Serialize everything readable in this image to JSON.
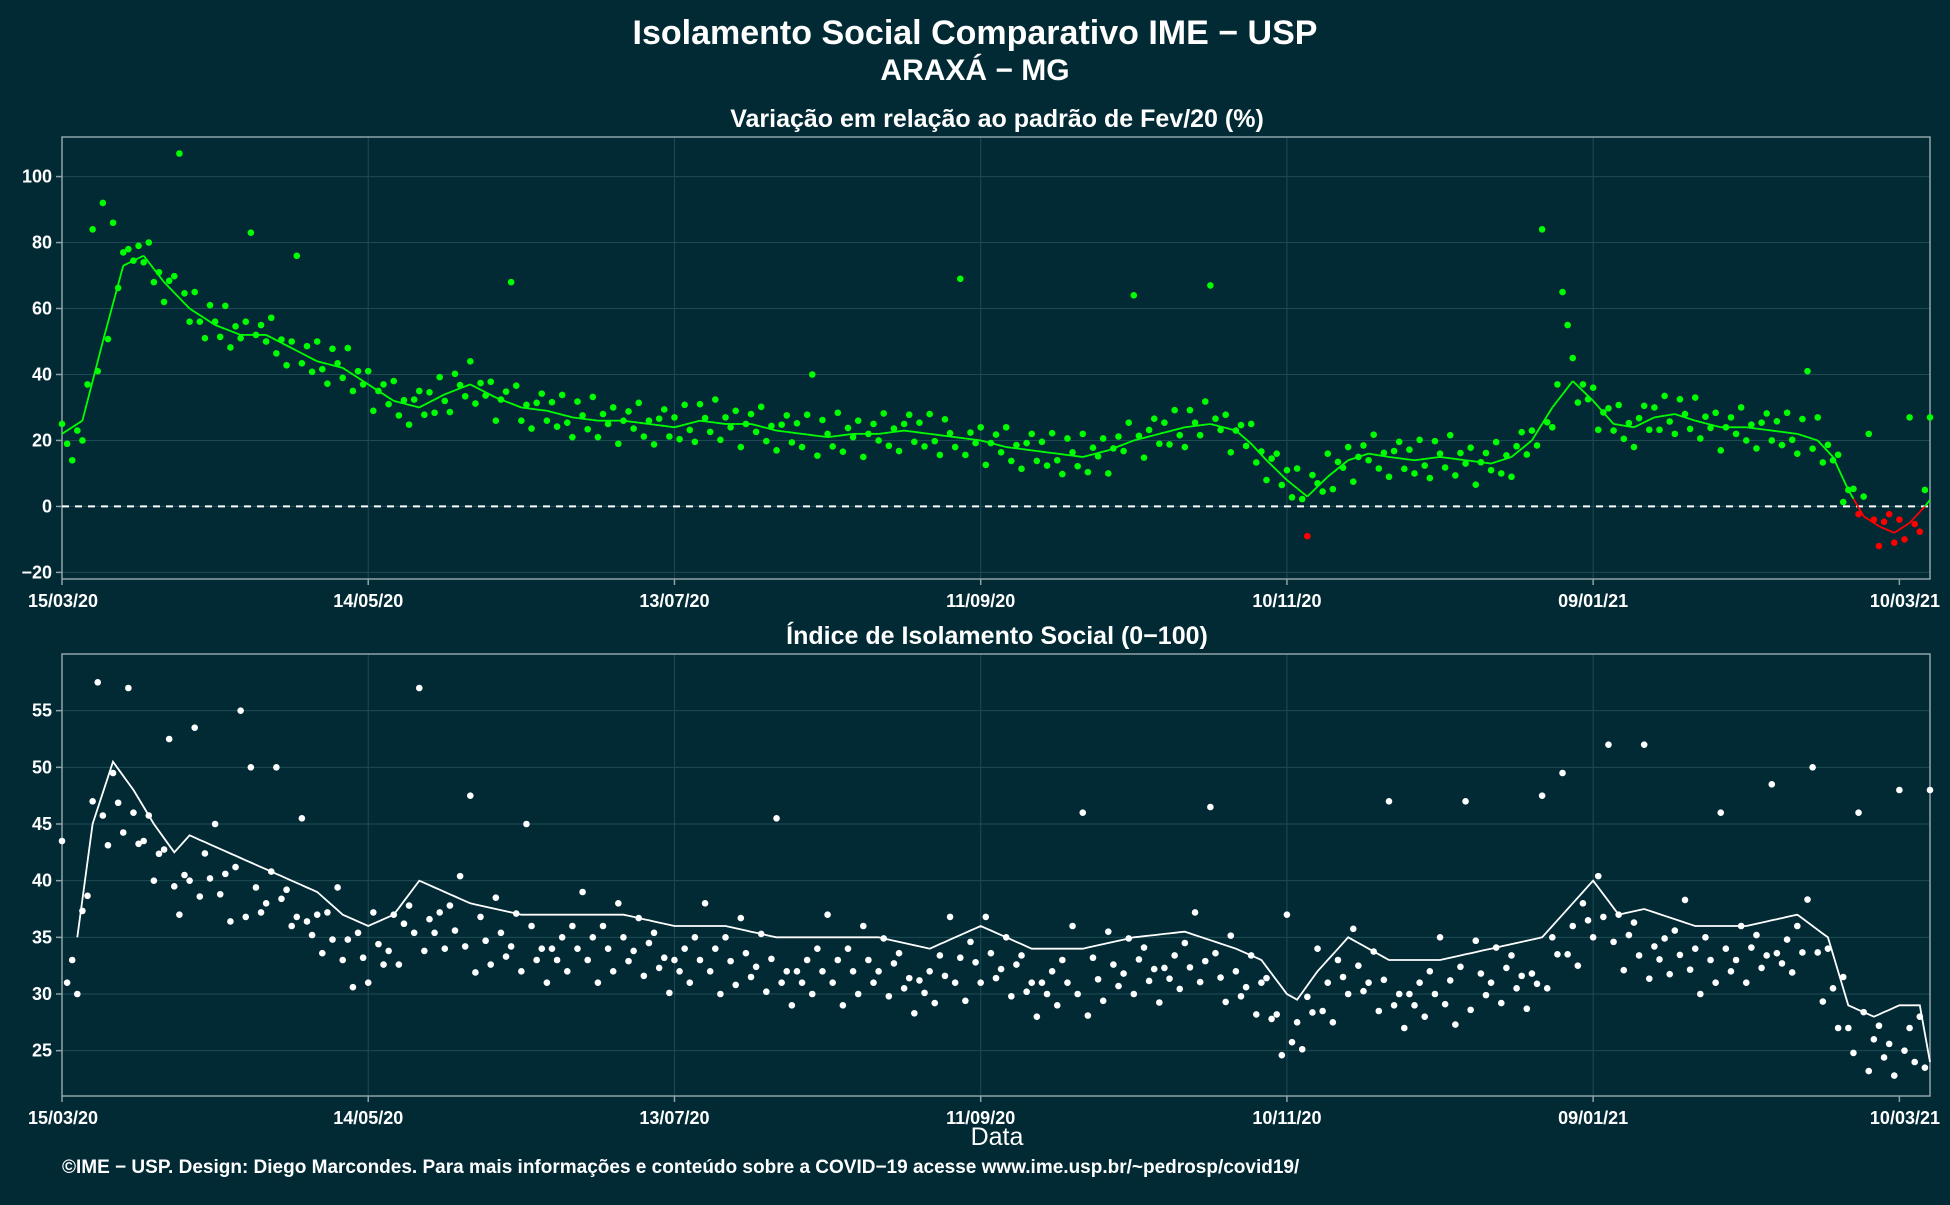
{
  "title": "Isolamento Social Comparativo IME − USP",
  "subtitle": "ARAXÁ − MG",
  "footer": "©IME − USP. Design: Diego Marcondes. Para mais informações e conteúdo sobre a COVID−19 acesse www.ime.usp.br/~pedrosp/covid19/",
  "colors": {
    "background": "#012a35",
    "positive": "#00ff00",
    "negative": "#ff0000",
    "index": "#ffffff",
    "axis": "#8fa3a6"
  },
  "chart_data": [
    {
      "type": "scatter",
      "title": "Variação em relação ao padrão de Fev/20 (%)",
      "xlabel": "",
      "ylabel": "",
      "x_ticks": [
        "15/03/20",
        "14/05/20",
        "13/07/20",
        "11/09/20",
        "10/11/20",
        "09/01/21",
        "10/03/21"
      ],
      "x_tick_days": [
        0,
        60,
        120,
        180,
        240,
        300,
        360
      ],
      "x_range_days": [
        0,
        366
      ],
      "y_ticks": [
        "−20",
        "0",
        "20",
        "40",
        "60",
        "80",
        "100"
      ],
      "ylim": [
        -22,
        112
      ],
      "reference_line": 0,
      "grid": true,
      "anchors": [
        [
          0,
          22
        ],
        [
          4,
          26
        ],
        [
          8,
          50
        ],
        [
          12,
          73
        ],
        [
          16,
          76
        ],
        [
          20,
          68
        ],
        [
          25,
          60
        ],
        [
          30,
          55
        ],
        [
          35,
          52
        ],
        [
          40,
          52
        ],
        [
          45,
          48
        ],
        [
          50,
          44
        ],
        [
          55,
          42
        ],
        [
          60,
          37
        ],
        [
          65,
          32
        ],
        [
          70,
          30
        ],
        [
          75,
          34
        ],
        [
          80,
          37
        ],
        [
          85,
          33
        ],
        [
          90,
          30
        ],
        [
          95,
          29
        ],
        [
          100,
          27
        ],
        [
          105,
          26
        ],
        [
          110,
          26
        ],
        [
          115,
          25
        ],
        [
          120,
          24
        ],
        [
          125,
          26
        ],
        [
          130,
          25
        ],
        [
          135,
          25
        ],
        [
          140,
          23
        ],
        [
          145,
          22
        ],
        [
          150,
          21
        ],
        [
          155,
          22
        ],
        [
          160,
          22
        ],
        [
          165,
          23
        ],
        [
          170,
          22
        ],
        [
          175,
          21
        ],
        [
          180,
          20
        ],
        [
          185,
          18
        ],
        [
          190,
          17
        ],
        [
          195,
          16
        ],
        [
          200,
          15
        ],
        [
          205,
          17
        ],
        [
          210,
          20
        ],
        [
          215,
          22
        ],
        [
          220,
          24
        ],
        [
          225,
          25
        ],
        [
          230,
          23
        ],
        [
          233,
          19
        ],
        [
          236,
          14
        ],
        [
          240,
          8
        ],
        [
          244,
          3
        ],
        [
          248,
          9
        ],
        [
          252,
          14
        ],
        [
          256,
          16
        ],
        [
          260,
          15
        ],
        [
          265,
          14
        ],
        [
          270,
          15
        ],
        [
          275,
          14
        ],
        [
          280,
          13
        ],
        [
          284,
          15
        ],
        [
          288,
          20
        ],
        [
          292,
          30
        ],
        [
          296,
          38
        ],
        [
          300,
          32
        ],
        [
          304,
          25
        ],
        [
          308,
          24
        ],
        [
          312,
          27
        ],
        [
          316,
          28
        ],
        [
          320,
          26
        ],
        [
          325,
          24
        ],
        [
          330,
          24
        ],
        [
          335,
          23
        ],
        [
          340,
          22
        ],
        [
          344,
          20
        ],
        [
          347,
          15
        ],
        [
          350,
          5
        ],
        [
          353,
          -3
        ],
        [
          356,
          -6
        ],
        [
          359,
          -8
        ],
        [
          362,
          -5
        ],
        [
          365,
          0
        ],
        [
          366,
          2
        ]
      ],
      "outliers": [
        [
          2,
          14
        ],
        [
          6,
          84
        ],
        [
          8,
          92
        ],
        [
          10,
          86
        ],
        [
          13,
          78
        ],
        [
          15,
          79
        ],
        [
          23,
          107
        ],
        [
          37,
          83
        ],
        [
          46,
          76
        ],
        [
          88,
          68
        ],
        [
          147,
          40
        ],
        [
          176,
          69
        ],
        [
          210,
          64
        ],
        [
          225,
          67
        ],
        [
          244,
          -9
        ],
        [
          290,
          84
        ],
        [
          294,
          65
        ],
        [
          295,
          55
        ],
        [
          342,
          41
        ],
        [
          354,
          22
        ],
        [
          362,
          27
        ],
        [
          366,
          27
        ]
      ],
      "scatter_offsets": [
        3,
        -4,
        6,
        -2,
        -6,
        5,
        1,
        -3,
        7,
        -5,
        2,
        -1,
        4,
        -7,
        0,
        3,
        -2,
        6,
        -4,
        1,
        -6,
        2,
        5,
        -3
      ],
      "series": [
        {
          "name": "",
          "kind": "rolling-mean-line"
        },
        {
          "name": "",
          "kind": "daily-points"
        }
      ]
    },
    {
      "type": "scatter",
      "title": "Índice de Isolamento Social (0−100)",
      "xlabel": "Data",
      "ylabel": "",
      "x_ticks": [
        "15/03/20",
        "14/05/20",
        "13/07/20",
        "11/09/20",
        "10/11/20",
        "09/01/21",
        "10/03/21"
      ],
      "x_tick_days": [
        0,
        60,
        120,
        180,
        240,
        300,
        360
      ],
      "x_range_days": [
        0,
        366
      ],
      "y_ticks": [
        "25",
        "30",
        "35",
        "40",
        "45",
        "50",
        "55"
      ],
      "ylim": [
        21,
        60
      ],
      "grid": true,
      "anchors": [
        [
          3,
          35
        ],
        [
          6,
          45
        ],
        [
          10,
          50.5
        ],
        [
          14,
          48
        ],
        [
          18,
          45
        ],
        [
          22,
          42.5
        ],
        [
          25,
          44
        ],
        [
          30,
          43
        ],
        [
          35,
          42
        ],
        [
          40,
          41
        ],
        [
          45,
          40
        ],
        [
          50,
          39
        ],
        [
          55,
          37
        ],
        [
          60,
          36
        ],
        [
          65,
          37
        ],
        [
          70,
          40
        ],
        [
          75,
          39
        ],
        [
          80,
          38
        ],
        [
          90,
          37
        ],
        [
          100,
          37
        ],
        [
          110,
          37
        ],
        [
          120,
          36
        ],
        [
          130,
          36
        ],
        [
          140,
          35
        ],
        [
          150,
          35
        ],
        [
          160,
          35
        ],
        [
          170,
          34
        ],
        [
          180,
          36
        ],
        [
          185,
          35
        ],
        [
          190,
          34
        ],
        [
          200,
          34
        ],
        [
          210,
          35
        ],
        [
          220,
          35.5
        ],
        [
          230,
          34
        ],
        [
          235,
          33
        ],
        [
          240,
          30
        ],
        [
          242,
          29.5
        ],
        [
          246,
          32
        ],
        [
          252,
          35
        ],
        [
          260,
          33
        ],
        [
          270,
          33
        ],
        [
          280,
          34
        ],
        [
          290,
          35
        ],
        [
          300,
          40
        ],
        [
          305,
          37
        ],
        [
          310,
          37.5
        ],
        [
          320,
          36
        ],
        [
          330,
          36
        ],
        [
          340,
          37
        ],
        [
          346,
          35
        ],
        [
          350,
          29
        ],
        [
          355,
          28
        ],
        [
          360,
          29
        ],
        [
          364,
          29
        ],
        [
          366,
          24
        ]
      ],
      "outliers": [
        [
          0,
          43.5
        ],
        [
          7,
          57.5
        ],
        [
          13,
          57
        ],
        [
          21,
          52.5
        ],
        [
          26,
          53.5
        ],
        [
          35,
          55
        ],
        [
          37,
          50
        ],
        [
          42,
          50
        ],
        [
          47,
          45.5
        ],
        [
          70,
          57
        ],
        [
          80,
          47.5
        ],
        [
          91,
          45
        ],
        [
          140,
          45.5
        ],
        [
          200,
          46
        ],
        [
          225,
          46.5
        ],
        [
          240,
          37
        ],
        [
          260,
          47
        ],
        [
          275,
          47
        ],
        [
          290,
          47.5
        ],
        [
          294,
          49.5
        ],
        [
          303,
          52
        ],
        [
          310,
          52
        ],
        [
          325,
          46
        ],
        [
          335,
          48.5
        ],
        [
          343,
          50
        ],
        [
          352,
          46
        ],
        [
          360,
          48
        ],
        [
          366,
          48
        ]
      ],
      "scatter_offsets": [
        -3,
        -4,
        -2,
        -5,
        -1,
        -3,
        2,
        -4,
        -2,
        -6,
        -1,
        -3,
        -5,
        1,
        -2,
        -4,
        -3,
        0,
        -5,
        -2,
        -1,
        -4,
        -3,
        -6
      ],
      "series": [
        {
          "name": "",
          "kind": "rolling-mean-line"
        },
        {
          "name": "",
          "kind": "daily-points"
        }
      ]
    }
  ]
}
